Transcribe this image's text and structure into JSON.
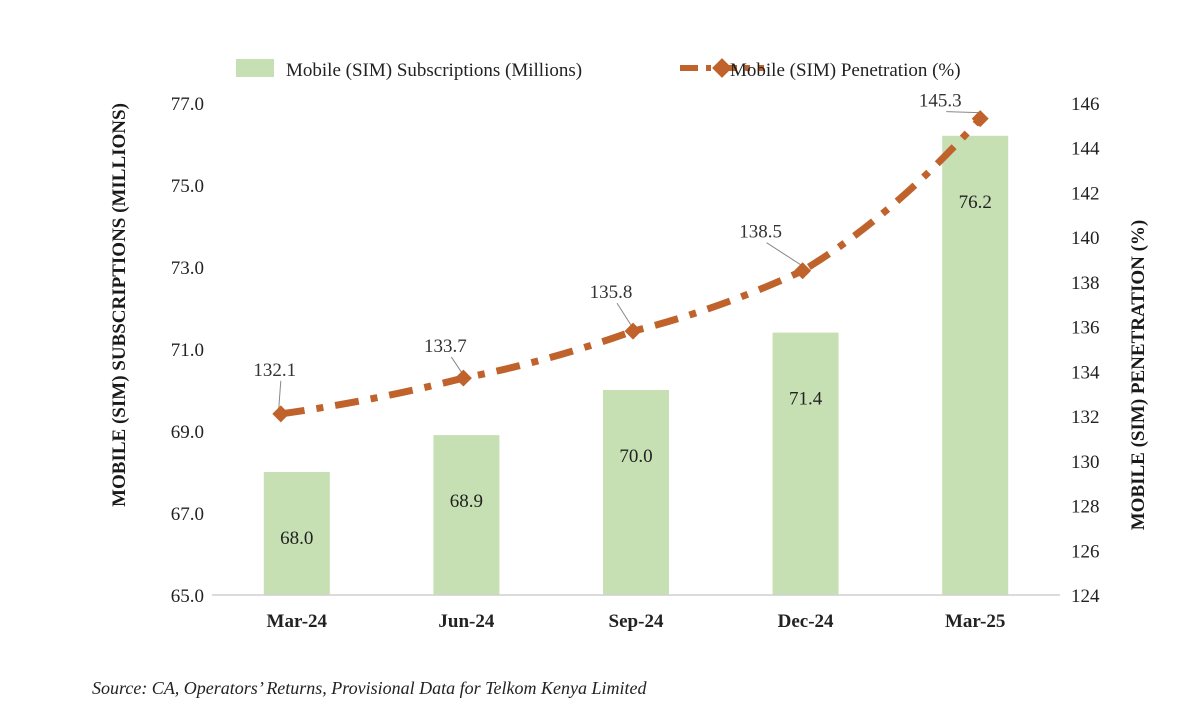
{
  "chart_data": {
    "type": "bar",
    "categories": [
      "Mar-24",
      "Jun-24",
      "Sep-24",
      "Dec-24",
      "Mar-25"
    ],
    "series": [
      {
        "name": "Mobile (SIM) Subscriptions (Millions)",
        "type": "bar",
        "axis": "left",
        "color": "#c6e0b4",
        "values": [
          68.0,
          68.9,
          70.0,
          71.4,
          76.2
        ],
        "labels": [
          "68.0",
          "68.9",
          "70.0",
          "71.4",
          "76.2"
        ]
      },
      {
        "name": "Mobile (SIM) Penetration (%)",
        "type": "line",
        "axis": "right",
        "color": "#c0622c",
        "line_style": "dash-dot",
        "marker": "diamond",
        "values": [
          132.1,
          133.7,
          135.8,
          138.5,
          145.3
        ],
        "labels": [
          "132.1",
          "133.7",
          "135.8",
          "138.5",
          "145.3"
        ]
      }
    ],
    "ylabel": "MOBILE (SIM) SUBSCRIPTIONS (MILLIONS)",
    "ylabel2": "MOBILE (SIM) PENETRATION (%)",
    "ylim": [
      65.0,
      77.0
    ],
    "y_ticks": [
      "65.0",
      "67.0",
      "69.0",
      "71.0",
      "73.0",
      "75.0",
      "77.0"
    ],
    "ylim2": [
      124,
      146
    ],
    "y2_ticks": [
      "124",
      "126",
      "128",
      "130",
      "132",
      "134",
      "136",
      "138",
      "140",
      "142",
      "144",
      "146"
    ],
    "legend_position": "top",
    "grid": false
  },
  "source": "Source: CA, Operators’ Returns, Provisional Data for Telkom Kenya Limited"
}
